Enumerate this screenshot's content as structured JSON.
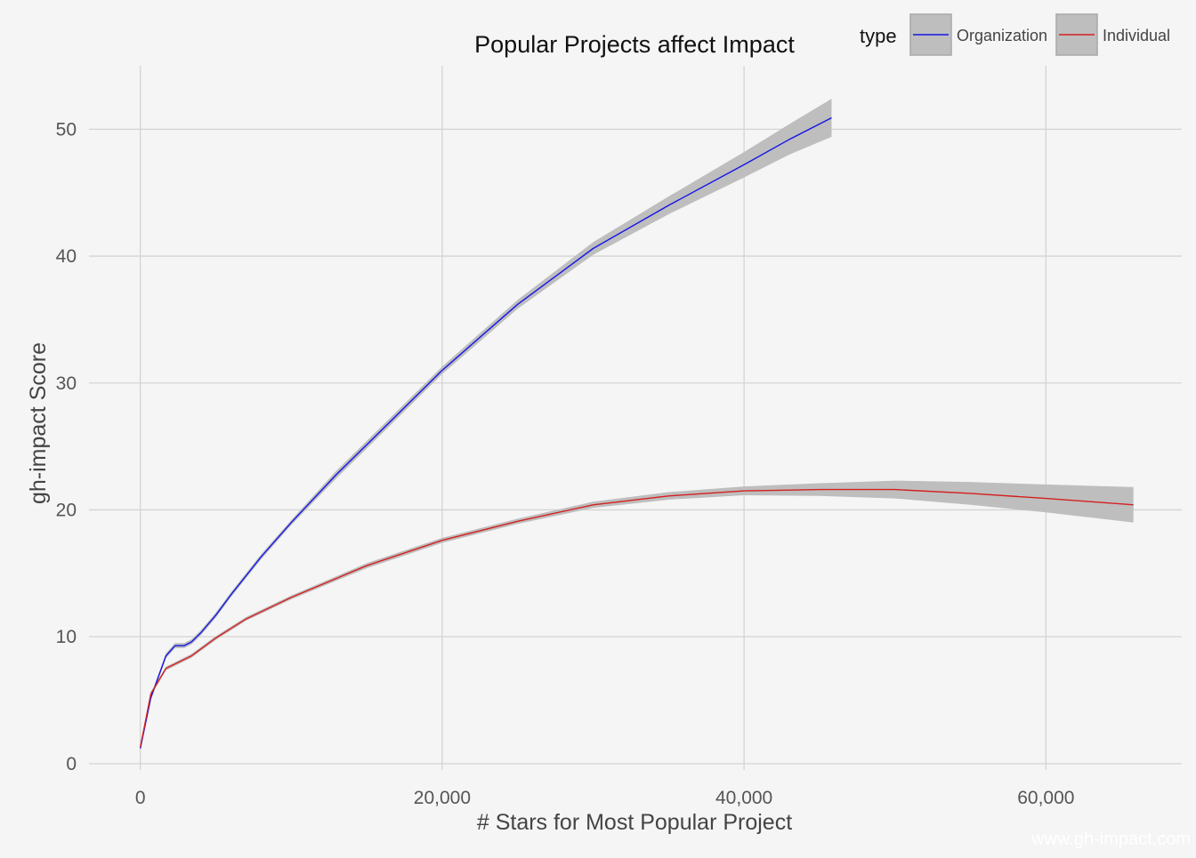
{
  "chart_data": {
    "type": "line",
    "title": "Popular Projects affect Impact",
    "xlabel": "# Stars for Most Popular Project",
    "ylabel": "gh-impact Score",
    "xlim": [
      -3400,
      69000
    ],
    "ylim": [
      -0.5,
      55
    ],
    "x_ticks": [
      0,
      20000,
      40000,
      60000
    ],
    "x_tick_labels": [
      "0",
      "20,000",
      "40,000",
      "60,000"
    ],
    "y_ticks": [
      0,
      10,
      20,
      30,
      40,
      50
    ],
    "y_tick_labels": [
      "0",
      "10",
      "20",
      "30",
      "40",
      "50"
    ],
    "grid": true,
    "legend": {
      "title": "type",
      "position": "top-right",
      "entries": [
        {
          "label": "Organization",
          "color": "#1515e6"
        },
        {
          "label": "Individual",
          "color": "#d42020"
        }
      ]
    },
    "ribbon_color": "#bebebe",
    "series": [
      {
        "name": "Organization",
        "color": "#1515e6",
        "points": [
          [
            0,
            1.2
          ],
          [
            700,
            5.2
          ],
          [
            1700,
            8.5
          ],
          [
            2300,
            9.3
          ],
          [
            2900,
            9.3
          ],
          [
            3400,
            9.6
          ],
          [
            4000,
            10.3
          ],
          [
            5000,
            11.7
          ],
          [
            6000,
            13.3
          ],
          [
            8000,
            16.3
          ],
          [
            10000,
            19.0
          ],
          [
            13000,
            22.8
          ],
          [
            16000,
            26.3
          ],
          [
            20000,
            31.0
          ],
          [
            25000,
            36.2
          ],
          [
            30000,
            40.6
          ],
          [
            35000,
            44.0
          ],
          [
            40000,
            47.2
          ],
          [
            43000,
            49.2
          ],
          [
            45800,
            50.9
          ]
        ],
        "ci_halfwidth": [
          0.15,
          0.2,
          0.2,
          0.2,
          0.2,
          0.2,
          0.2,
          0.2,
          0.2,
          0.2,
          0.2,
          0.3,
          0.3,
          0.3,
          0.35,
          0.5,
          0.7,
          1.0,
          1.2,
          1.5
        ]
      },
      {
        "name": "Individual",
        "color": "#d42020",
        "points": [
          [
            0,
            1.3
          ],
          [
            700,
            5.5
          ],
          [
            1700,
            7.5
          ],
          [
            3400,
            8.5
          ],
          [
            5000,
            9.9
          ],
          [
            7000,
            11.4
          ],
          [
            10000,
            13.1
          ],
          [
            15000,
            15.6
          ],
          [
            20000,
            17.6
          ],
          [
            25000,
            19.1
          ],
          [
            30000,
            20.4
          ],
          [
            35000,
            21.1
          ],
          [
            40000,
            21.5
          ],
          [
            45000,
            21.6
          ],
          [
            50000,
            21.6
          ],
          [
            55000,
            21.3
          ],
          [
            60000,
            20.9
          ],
          [
            65800,
            20.4
          ]
        ],
        "ci_halfwidth": [
          0.15,
          0.15,
          0.15,
          0.15,
          0.15,
          0.15,
          0.15,
          0.2,
          0.2,
          0.2,
          0.25,
          0.3,
          0.35,
          0.5,
          0.7,
          0.9,
          1.1,
          1.4
        ]
      }
    ]
  },
  "watermark": "www.gh-impact.com"
}
